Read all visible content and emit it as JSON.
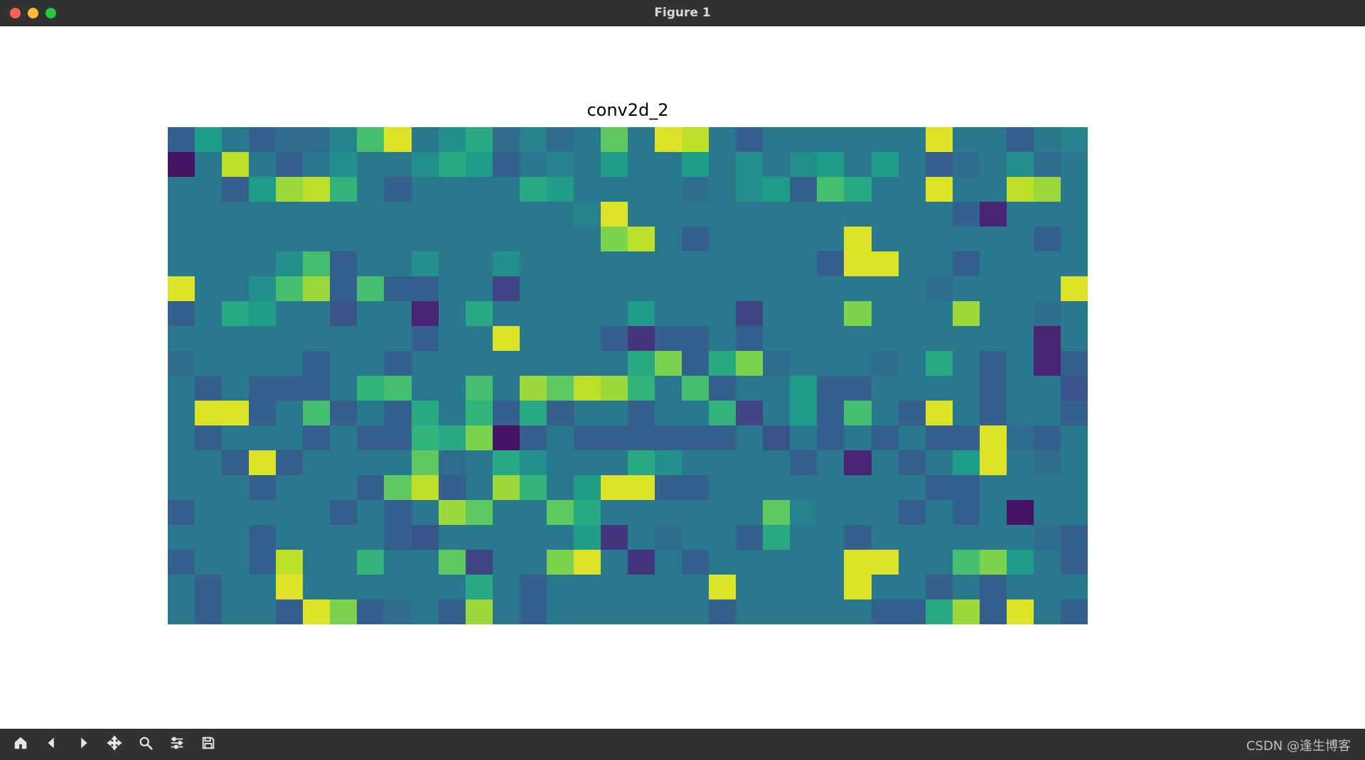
{
  "window": {
    "title": "Figure 1",
    "titlebar_bg": "#323232",
    "traffic_light_colors": [
      "#ff5f57",
      "#febc2e",
      "#28c840"
    ]
  },
  "chart": {
    "type": "heatmap",
    "title": "conv2d_2",
    "title_fontsize": 24,
    "title_color": "#000000",
    "rows": 20,
    "cols": 34,
    "cell_aspect": 0.92,
    "background_color": "#ffffff",
    "colormap_name": "viridis",
    "colormap": [
      "#440154",
      "#482878",
      "#3e4c8a",
      "#31688e",
      "#26828e",
      "#1f9e89",
      "#35b779",
      "#6ece58",
      "#b5de2b",
      "#fde725"
    ],
    "vmin": 0.0,
    "vmax": 1.0,
    "values": [
      [
        0.3,
        0.55,
        0.4,
        0.3,
        0.35,
        0.35,
        0.45,
        0.7,
        0.95,
        0.4,
        0.5,
        0.6,
        0.35,
        0.45,
        0.35,
        0.4,
        0.75,
        0.4,
        0.95,
        0.9,
        0.4,
        0.3,
        0.4,
        0.4,
        0.4,
        0.4,
        0.4,
        0.4,
        0.95,
        0.4,
        0.4,
        0.3,
        0.4,
        0.45
      ],
      [
        0.05,
        0.4,
        0.9,
        0.4,
        0.3,
        0.4,
        0.5,
        0.4,
        0.4,
        0.5,
        0.6,
        0.55,
        0.3,
        0.4,
        0.45,
        0.4,
        0.55,
        0.4,
        0.4,
        0.55,
        0.4,
        0.5,
        0.4,
        0.5,
        0.55,
        0.4,
        0.55,
        0.4,
        0.3,
        0.35,
        0.4,
        0.5,
        0.35,
        0.4
      ],
      [
        0.4,
        0.4,
        0.3,
        0.55,
        0.85,
        0.9,
        0.65,
        0.4,
        0.3,
        0.4,
        0.4,
        0.4,
        0.4,
        0.6,
        0.55,
        0.4,
        0.4,
        0.4,
        0.4,
        0.35,
        0.4,
        0.5,
        0.55,
        0.3,
        0.7,
        0.6,
        0.4,
        0.4,
        0.95,
        0.4,
        0.4,
        0.9,
        0.85,
        0.4
      ],
      [
        0.4,
        0.4,
        0.4,
        0.4,
        0.4,
        0.4,
        0.4,
        0.4,
        0.4,
        0.4,
        0.4,
        0.4,
        0.4,
        0.4,
        0.4,
        0.45,
        0.95,
        0.4,
        0.4,
        0.4,
        0.4,
        0.4,
        0.4,
        0.4,
        0.4,
        0.4,
        0.4,
        0.4,
        0.4,
        0.3,
        0.1,
        0.4,
        0.4,
        0.4
      ],
      [
        0.4,
        0.4,
        0.4,
        0.4,
        0.4,
        0.4,
        0.4,
        0.4,
        0.4,
        0.4,
        0.4,
        0.4,
        0.4,
        0.4,
        0.4,
        0.4,
        0.8,
        0.9,
        0.4,
        0.3,
        0.4,
        0.4,
        0.4,
        0.4,
        0.4,
        0.95,
        0.4,
        0.4,
        0.4,
        0.4,
        0.4,
        0.4,
        0.3,
        0.4
      ],
      [
        0.4,
        0.4,
        0.4,
        0.4,
        0.5,
        0.7,
        0.3,
        0.4,
        0.4,
        0.5,
        0.4,
        0.4,
        0.5,
        0.4,
        0.4,
        0.4,
        0.4,
        0.4,
        0.4,
        0.4,
        0.4,
        0.4,
        0.4,
        0.4,
        0.3,
        0.95,
        0.95,
        0.4,
        0.4,
        0.3,
        0.4,
        0.4,
        0.4,
        0.4
      ],
      [
        0.95,
        0.4,
        0.4,
        0.5,
        0.7,
        0.85,
        0.3,
        0.7,
        0.3,
        0.3,
        0.4,
        0.4,
        0.2,
        0.4,
        0.4,
        0.4,
        0.4,
        0.4,
        0.4,
        0.4,
        0.4,
        0.4,
        0.4,
        0.4,
        0.4,
        0.4,
        0.4,
        0.4,
        0.35,
        0.4,
        0.4,
        0.4,
        0.4,
        0.95
      ],
      [
        0.3,
        0.4,
        0.6,
        0.55,
        0.4,
        0.4,
        0.25,
        0.4,
        0.4,
        0.1,
        0.4,
        0.6,
        0.4,
        0.4,
        0.4,
        0.4,
        0.4,
        0.55,
        0.4,
        0.4,
        0.4,
        0.2,
        0.4,
        0.4,
        0.4,
        0.8,
        0.4,
        0.4,
        0.4,
        0.85,
        0.4,
        0.4,
        0.35,
        0.4
      ],
      [
        0.4,
        0.4,
        0.4,
        0.4,
        0.4,
        0.4,
        0.4,
        0.4,
        0.4,
        0.3,
        0.4,
        0.4,
        0.95,
        0.4,
        0.4,
        0.4,
        0.3,
        0.15,
        0.3,
        0.3,
        0.4,
        0.3,
        0.4,
        0.4,
        0.4,
        0.4,
        0.4,
        0.4,
        0.4,
        0.4,
        0.4,
        0.4,
        0.1,
        0.4
      ],
      [
        0.35,
        0.4,
        0.4,
        0.4,
        0.4,
        0.3,
        0.4,
        0.4,
        0.3,
        0.4,
        0.4,
        0.4,
        0.4,
        0.4,
        0.4,
        0.4,
        0.4,
        0.6,
        0.8,
        0.3,
        0.6,
        0.8,
        0.35,
        0.4,
        0.4,
        0.4,
        0.35,
        0.4,
        0.6,
        0.4,
        0.3,
        0.4,
        0.1,
        0.3
      ],
      [
        0.4,
        0.3,
        0.4,
        0.3,
        0.3,
        0.3,
        0.4,
        0.65,
        0.7,
        0.4,
        0.4,
        0.7,
        0.4,
        0.85,
        0.75,
        0.9,
        0.85,
        0.65,
        0.4,
        0.7,
        0.3,
        0.4,
        0.4,
        0.55,
        0.3,
        0.3,
        0.4,
        0.4,
        0.4,
        0.4,
        0.3,
        0.4,
        0.4,
        0.25
      ],
      [
        0.4,
        0.95,
        0.95,
        0.3,
        0.4,
        0.7,
        0.3,
        0.4,
        0.3,
        0.6,
        0.4,
        0.65,
        0.3,
        0.6,
        0.3,
        0.4,
        0.4,
        0.3,
        0.4,
        0.4,
        0.65,
        0.2,
        0.4,
        0.55,
        0.3,
        0.7,
        0.4,
        0.3,
        0.95,
        0.4,
        0.3,
        0.4,
        0.4,
        0.3
      ],
      [
        0.4,
        0.3,
        0.4,
        0.4,
        0.4,
        0.3,
        0.4,
        0.3,
        0.3,
        0.65,
        0.6,
        0.8,
        0.05,
        0.3,
        0.4,
        0.3,
        0.3,
        0.3,
        0.3,
        0.3,
        0.3,
        0.4,
        0.25,
        0.4,
        0.3,
        0.4,
        0.3,
        0.4,
        0.3,
        0.3,
        0.95,
        0.35,
        0.3,
        0.4
      ],
      [
        0.4,
        0.4,
        0.3,
        0.95,
        0.3,
        0.4,
        0.4,
        0.4,
        0.4,
        0.75,
        0.35,
        0.4,
        0.6,
        0.5,
        0.4,
        0.4,
        0.4,
        0.6,
        0.5,
        0.4,
        0.4,
        0.4,
        0.4,
        0.3,
        0.4,
        0.1,
        0.4,
        0.3,
        0.4,
        0.55,
        0.95,
        0.4,
        0.35,
        0.4
      ],
      [
        0.4,
        0.4,
        0.4,
        0.3,
        0.4,
        0.4,
        0.4,
        0.3,
        0.75,
        0.9,
        0.3,
        0.4,
        0.85,
        0.65,
        0.4,
        0.55,
        0.95,
        0.95,
        0.3,
        0.3,
        0.4,
        0.4,
        0.4,
        0.4,
        0.4,
        0.4,
        0.4,
        0.4,
        0.3,
        0.3,
        0.4,
        0.4,
        0.4,
        0.4
      ],
      [
        0.3,
        0.4,
        0.4,
        0.4,
        0.4,
        0.4,
        0.3,
        0.4,
        0.3,
        0.4,
        0.85,
        0.75,
        0.4,
        0.4,
        0.75,
        0.6,
        0.4,
        0.4,
        0.4,
        0.4,
        0.4,
        0.4,
        0.75,
        0.45,
        0.4,
        0.4,
        0.4,
        0.3,
        0.4,
        0.3,
        0.4,
        0.05,
        0.4,
        0.4
      ],
      [
        0.4,
        0.4,
        0.4,
        0.3,
        0.4,
        0.4,
        0.4,
        0.4,
        0.3,
        0.25,
        0.4,
        0.4,
        0.4,
        0.4,
        0.4,
        0.55,
        0.15,
        0.4,
        0.35,
        0.4,
        0.4,
        0.3,
        0.6,
        0.4,
        0.4,
        0.3,
        0.4,
        0.4,
        0.4,
        0.4,
        0.4,
        0.4,
        0.35,
        0.3
      ],
      [
        0.3,
        0.4,
        0.4,
        0.3,
        0.9,
        0.4,
        0.4,
        0.65,
        0.4,
        0.4,
        0.75,
        0.2,
        0.4,
        0.4,
        0.8,
        0.95,
        0.4,
        0.15,
        0.4,
        0.3,
        0.4,
        0.4,
        0.4,
        0.4,
        0.4,
        0.95,
        0.95,
        0.4,
        0.4,
        0.7,
        0.8,
        0.55,
        0.4,
        0.3
      ],
      [
        0.4,
        0.3,
        0.4,
        0.4,
        0.95,
        0.4,
        0.4,
        0.4,
        0.4,
        0.4,
        0.4,
        0.6,
        0.4,
        0.3,
        0.4,
        0.4,
        0.4,
        0.4,
        0.4,
        0.4,
        0.95,
        0.4,
        0.4,
        0.4,
        0.4,
        0.95,
        0.4,
        0.4,
        0.3,
        0.4,
        0.3,
        0.4,
        0.4,
        0.4
      ],
      [
        0.4,
        0.3,
        0.4,
        0.4,
        0.3,
        0.95,
        0.8,
        0.3,
        0.35,
        0.4,
        0.3,
        0.85,
        0.4,
        0.3,
        0.4,
        0.4,
        0.4,
        0.4,
        0.4,
        0.4,
        0.3,
        0.4,
        0.4,
        0.4,
        0.4,
        0.4,
        0.3,
        0.3,
        0.6,
        0.85,
        0.3,
        0.95,
        0.4,
        0.3
      ]
    ]
  },
  "toolbar": {
    "bg": "#323232",
    "icon_color": "#e8e8e8",
    "buttons": [
      {
        "name": "home-icon",
        "label": "Home"
      },
      {
        "name": "back-icon",
        "label": "Back"
      },
      {
        "name": "forward-icon",
        "label": "Forward"
      },
      {
        "name": "pan-icon",
        "label": "Pan"
      },
      {
        "name": "zoom-icon",
        "label": "Zoom"
      },
      {
        "name": "configure-icon",
        "label": "Configure subplots"
      },
      {
        "name": "save-icon",
        "label": "Save"
      }
    ]
  },
  "watermark": "CSDN @逢生博客"
}
